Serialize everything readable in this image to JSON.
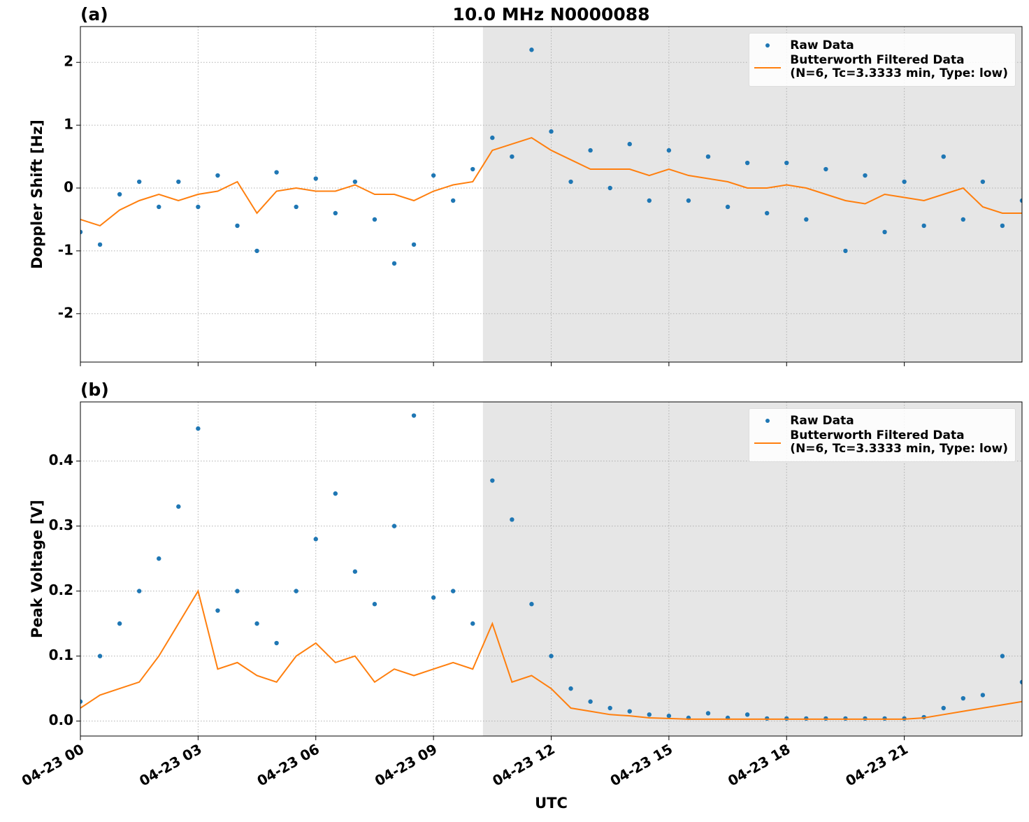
{
  "chart_data": [
    {
      "type": "scatter-line",
      "panel_label": "(a)",
      "title": "10.0 MHz N0000088",
      "ylabel": "Doppler Shift [Hz]",
      "xlim": [
        0,
        24
      ],
      "ylim": [
        -2.77,
        2.57
      ],
      "yticks": [
        -2,
        -1,
        0,
        1,
        2
      ],
      "grid": true,
      "legend": "upper right",
      "shaded_x": [
        10.26,
        24
      ],
      "x": [
        0,
        0.5,
        1,
        1.5,
        2,
        2.5,
        3,
        3.5,
        4,
        4.5,
        5,
        5.5,
        6,
        6.5,
        7,
        7.5,
        8,
        8.5,
        9,
        9.5,
        10,
        10.5,
        11,
        11.5,
        12,
        12.5,
        13,
        13.5,
        14,
        14.5,
        15,
        15.5,
        16,
        16.5,
        17,
        17.5,
        18,
        18.5,
        19,
        19.5,
        20,
        20.5,
        21,
        21.5,
        22,
        22.5,
        23,
        23.5,
        24
      ],
      "series": [
        {
          "name": "Raw Data",
          "color": "#1f77b4",
          "style": "points",
          "values": [
            -0.7,
            -0.9,
            -0.1,
            0.1,
            -0.3,
            0.1,
            -0.3,
            0.2,
            -0.6,
            -1.0,
            0.25,
            -0.3,
            0.15,
            -0.4,
            0.1,
            -0.5,
            -1.2,
            -0.9,
            0.2,
            -0.2,
            0.3,
            0.8,
            0.5,
            2.2,
            0.9,
            0.1,
            0.6,
            0.0,
            0.7,
            -0.2,
            0.6,
            -0.2,
            0.5,
            -0.3,
            0.4,
            -0.4,
            0.4,
            -0.5,
            0.3,
            -1.0,
            0.2,
            -0.7,
            0.1,
            -0.6,
            0.5,
            -0.5,
            0.1,
            -0.6,
            -0.2
          ]
        },
        {
          "name": "Butterworth Filtered Data\n(N=6, Tc=3.3333 min, Type: low)",
          "color": "#ff7f0e",
          "style": "line",
          "values": [
            -0.5,
            -0.6,
            -0.35,
            -0.2,
            -0.1,
            -0.2,
            -0.1,
            -0.05,
            0.1,
            -0.4,
            -0.05,
            0,
            -0.05,
            -0.05,
            0.05,
            -0.1,
            -0.1,
            -0.2,
            -0.05,
            0.05,
            0.1,
            0.6,
            0.7,
            0.8,
            0.6,
            0.45,
            0.3,
            0.3,
            0.3,
            0.2,
            0.3,
            0.2,
            0.15,
            0.1,
            0,
            0,
            0.05,
            0,
            -0.1,
            -0.2,
            -0.25,
            -0.1,
            -0.15,
            -0.2,
            -0.1,
            0,
            -0.3,
            -0.4,
            -0.4
          ]
        }
      ]
    },
    {
      "type": "scatter-line",
      "panel_label": "(b)",
      "ylabel": "Peak Voltage [V]",
      "xlabel": "UTC",
      "xlim": [
        0,
        24
      ],
      "ylim": [
        -0.023,
        0.491
      ],
      "yticks": [
        {
          "value": 0,
          "label": "0.0"
        },
        0.1,
        0.2,
        0.3,
        0.4
      ],
      "xticks": [
        {
          "value": 0,
          "label": "04-23 00"
        },
        {
          "value": 3,
          "label": "04-23 03"
        },
        {
          "value": 6,
          "label": "04-23 06"
        },
        {
          "value": 9,
          "label": "04-23 09"
        },
        {
          "value": 12,
          "label": "04-23 12"
        },
        {
          "value": 15,
          "label": "04-23 15"
        },
        {
          "value": 18,
          "label": "04-23 18"
        },
        {
          "value": 21,
          "label": "04-23 21"
        }
      ],
      "grid": true,
      "legend": "upper right",
      "shaded_x": [
        10.26,
        24
      ],
      "x": [
        0,
        0.5,
        1,
        1.5,
        2,
        2.5,
        3,
        3.5,
        4,
        4.5,
        5,
        5.5,
        6,
        6.5,
        7,
        7.5,
        8,
        8.5,
        9,
        9.5,
        10,
        10.5,
        11,
        11.5,
        12,
        12.5,
        13,
        13.5,
        14,
        14.5,
        15,
        15.5,
        16,
        16.5,
        17,
        17.5,
        18,
        18.5,
        19,
        19.5,
        20,
        20.5,
        21,
        21.5,
        22,
        22.5,
        23,
        23.5,
        24
      ],
      "series": [
        {
          "name": "Raw Data",
          "color": "#1f77b4",
          "style": "points",
          "values": [
            0.03,
            0.1,
            0.15,
            0.2,
            0.25,
            0.33,
            0.45,
            0.17,
            0.2,
            0.15,
            0.12,
            0.2,
            0.28,
            0.35,
            0.23,
            0.18,
            0.3,
            0.47,
            0.19,
            0.2,
            0.15,
            0.37,
            0.31,
            0.18,
            0.1,
            0.05,
            0.03,
            0.02,
            0.015,
            0.01,
            0.008,
            0.005,
            0.012,
            0.005,
            0.01,
            0.004,
            0.004,
            0.004,
            0.004,
            0.004,
            0.004,
            0.004,
            0.004,
            0.006,
            0.02,
            0.035,
            0.04,
            0.1,
            0.06
          ]
        },
        {
          "name": "Butterworth Filtered Data\n(N=6, Tc=3.3333 min, Type: low)",
          "color": "#ff7f0e",
          "style": "line",
          "values": [
            0.02,
            0.04,
            0.05,
            0.06,
            0.1,
            0.15,
            0.2,
            0.08,
            0.09,
            0.07,
            0.06,
            0.1,
            0.12,
            0.09,
            0.1,
            0.06,
            0.08,
            0.07,
            0.08,
            0.09,
            0.08,
            0.15,
            0.06,
            0.07,
            0.05,
            0.02,
            0.015,
            0.01,
            0.008,
            0.005,
            0.004,
            0.003,
            0.003,
            0.003,
            0.003,
            0.003,
            0.003,
            0.003,
            0.003,
            0.003,
            0.003,
            0.003,
            0.003,
            0.005,
            0.01,
            0.015,
            0.02,
            0.025,
            0.03
          ]
        }
      ]
    }
  ]
}
